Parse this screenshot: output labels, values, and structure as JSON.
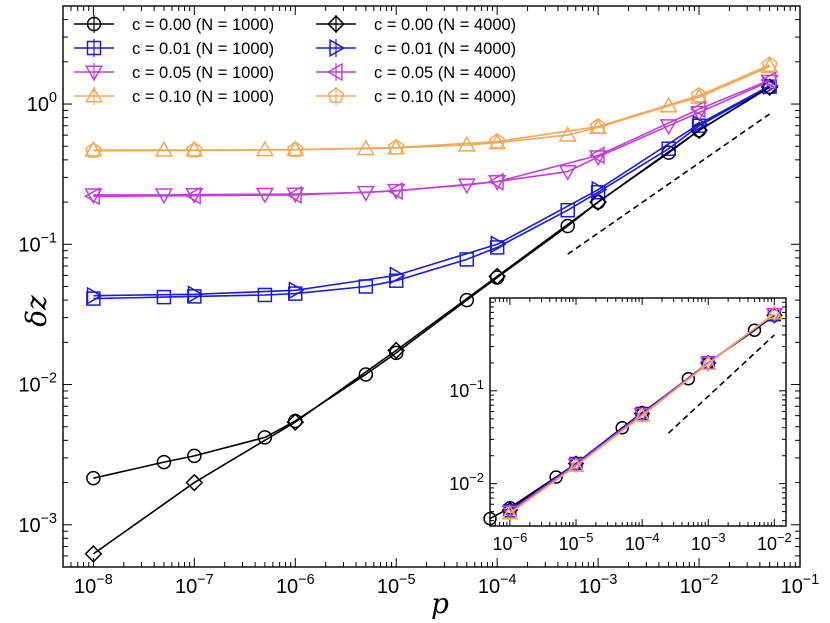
{
  "chart_data": {
    "type": "line",
    "xscale": "log",
    "yscale": "log",
    "xlabel": "p",
    "ylabel": "δz",
    "xlim": [
      5e-09,
      0.1
    ],
    "ylim": [
      0.0005,
      5
    ],
    "x_ticks": [
      {
        "value": 1e-08,
        "base": "10",
        "exp": "−8"
      },
      {
        "value": 1e-07,
        "base": "10",
        "exp": "−7"
      },
      {
        "value": 1e-06,
        "base": "10",
        "exp": "−6"
      },
      {
        "value": 1e-05,
        "base": "10",
        "exp": "−5"
      },
      {
        "value": 0.0001,
        "base": "10",
        "exp": "−4"
      },
      {
        "value": 0.001,
        "base": "10",
        "exp": "−3"
      },
      {
        "value": 0.01,
        "base": "10",
        "exp": "−2"
      },
      {
        "value": 0.1,
        "base": "10",
        "exp": "−1"
      }
    ],
    "y_ticks": [
      {
        "value": 0.001,
        "base": "10",
        "exp": "−3"
      },
      {
        "value": 0.01,
        "base": "10",
        "exp": "−2"
      },
      {
        "value": 0.1,
        "base": "10",
        "exp": "−1"
      },
      {
        "value": 1,
        "base": "10",
        "exp": "0"
      }
    ],
    "legend_position": "top-left",
    "series": [
      {
        "name": "c = 0.00 (N = 1000)",
        "color": "#000000",
        "marker": "circle",
        "x": [
          1e-08,
          5e-08,
          1e-07,
          5e-07,
          1e-06,
          5e-06,
          1e-05,
          5e-05,
          0.0001,
          0.0005,
          0.001,
          0.005,
          0.01,
          0.05
        ],
        "y": [
          0.00215,
          0.0028,
          0.0031,
          0.0042,
          0.0055,
          0.0118,
          0.0168,
          0.04,
          0.058,
          0.135,
          0.2,
          0.45,
          0.65,
          1.32
        ]
      },
      {
        "name": "c = 0.01 (N = 1000)",
        "color": "#1a1ae6",
        "marker": "square",
        "x": [
          1e-08,
          5e-08,
          1e-07,
          5e-07,
          1e-06,
          5e-06,
          1e-05,
          5e-05,
          0.0001,
          0.0005,
          0.001,
          0.005,
          0.01,
          0.05
        ],
        "y": [
          0.041,
          0.042,
          0.0425,
          0.0435,
          0.0445,
          0.05,
          0.055,
          0.078,
          0.095,
          0.175,
          0.235,
          0.48,
          0.7,
          1.33
        ]
      },
      {
        "name": "c = 0.05 (N = 1000)",
        "color": "#c23fd9",
        "marker": "triangle-down",
        "x": [
          1e-08,
          5e-08,
          1e-07,
          5e-07,
          1e-06,
          5e-06,
          1e-05,
          5e-05,
          0.0001,
          0.0005,
          0.001,
          0.005,
          0.01,
          0.05
        ],
        "y": [
          0.225,
          0.225,
          0.226,
          0.227,
          0.228,
          0.234,
          0.242,
          0.265,
          0.28,
          0.33,
          0.42,
          0.7,
          0.87,
          1.45
        ]
      },
      {
        "name": "c = 0.10 (N = 1000)",
        "color": "#f5a85a",
        "marker": "triangle-up",
        "x": [
          1e-08,
          5e-08,
          1e-07,
          5e-07,
          1e-06,
          5e-06,
          1e-05,
          5e-05,
          0.0001,
          0.0005,
          0.001,
          0.005,
          0.01,
          0.05
        ],
        "y": [
          0.47,
          0.47,
          0.47,
          0.472,
          0.474,
          0.48,
          0.486,
          0.51,
          0.53,
          0.6,
          0.68,
          0.97,
          1.12,
          1.85
        ]
      },
      {
        "name": "c = 0.00 (N = 4000)",
        "color": "#000000",
        "marker": "diamond",
        "x": [
          1e-08,
          1e-07,
          1e-06,
          1e-05,
          0.0001,
          0.001,
          0.01,
          0.05
        ],
        "y": [
          0.00062,
          0.002,
          0.0054,
          0.0175,
          0.059,
          0.2,
          0.65,
          1.32
        ]
      },
      {
        "name": "c = 0.01 (N = 4000)",
        "color": "#1a1ae6",
        "marker": "triangle-right",
        "x": [
          1e-08,
          1e-07,
          1e-06,
          1e-05,
          0.0001,
          0.001,
          0.01,
          0.05
        ],
        "y": [
          0.043,
          0.044,
          0.047,
          0.06,
          0.1,
          0.245,
          0.72,
          1.35
        ]
      },
      {
        "name": "c = 0.05 (N = 4000)",
        "color": "#c23fd9",
        "marker": "triangle-left",
        "x": [
          1e-08,
          1e-07,
          1e-06,
          1e-05,
          0.0001,
          0.001,
          0.01,
          0.05
        ],
        "y": [
          0.22,
          0.222,
          0.225,
          0.24,
          0.28,
          0.43,
          0.92,
          1.48
        ]
      },
      {
        "name": "c = 0.10 (N = 4000)",
        "color": "#f5a85a",
        "marker": "pentagon",
        "x": [
          1e-08,
          1e-07,
          1e-06,
          1e-05,
          0.0001,
          0.001,
          0.01,
          0.05
        ],
        "y": [
          0.465,
          0.468,
          0.472,
          0.49,
          0.54,
          0.69,
          1.15,
          1.9
        ]
      }
    ],
    "reference_line": {
      "style": "dashed",
      "color": "#000000",
      "x": [
        0.0005,
        0.05
      ],
      "y": [
        0.085,
        0.85
      ]
    },
    "inset": {
      "xscale": "log",
      "yscale": "log",
      "xlim": [
        5e-07,
        0.015
      ],
      "ylim": [
        0.0035,
        1.0
      ],
      "x_ticks": [
        {
          "value": 1e-06,
          "base": "10",
          "exp": "−6"
        },
        {
          "value": 1e-05,
          "base": "10",
          "exp": "−5"
        },
        {
          "value": 0.0001,
          "base": "10",
          "exp": "−4"
        },
        {
          "value": 0.001,
          "base": "10",
          "exp": "−3"
        },
        {
          "value": 0.01,
          "base": "10",
          "exp": "−2"
        }
      ],
      "y_ticks": [
        {
          "value": 0.01,
          "base": "10",
          "exp": "−2"
        },
        {
          "value": 0.1,
          "base": "10",
          "exp": "−1"
        }
      ],
      "series": [
        {
          "name": "c = 0.00 (N = 1000)",
          "color": "#000000",
          "marker": "circle",
          "x": [
            5e-07,
            1e-06,
            5e-06,
            1e-05,
            5e-05,
            0.0001,
            0.0005,
            0.001,
            0.005,
            0.01
          ],
          "y": [
            0.0042,
            0.0055,
            0.0118,
            0.0165,
            0.04,
            0.058,
            0.135,
            0.2,
            0.45,
            0.65
          ]
        },
        {
          "name": "c = 0.00 (N = 4000)",
          "color": "#000000",
          "marker": "diamond",
          "x": [
            1e-06,
            1e-05,
            0.0001,
            0.001,
            0.01
          ],
          "y": [
            0.0052,
            0.0165,
            0.057,
            0.2,
            0.65
          ]
        },
        {
          "name": "c = 0.01",
          "color": "#1a1ae6",
          "marker": "square",
          "x": [
            1e-06,
            1e-05,
            0.0001,
            0.001,
            0.01
          ],
          "y": [
            0.0051,
            0.0165,
            0.057,
            0.2,
            0.66
          ]
        },
        {
          "name": "c = 0.05",
          "color": "#c23fd9",
          "marker": "triangle-down",
          "x": [
            1e-06,
            1e-05,
            0.0001,
            0.001,
            0.01
          ],
          "y": [
            0.005,
            0.016,
            0.056,
            0.2,
            0.67
          ]
        },
        {
          "name": "c = 0.10",
          "color": "#f5a85a",
          "marker": "triangle-up",
          "x": [
            1e-06,
            1e-05,
            0.0001,
            0.001,
            0.01
          ],
          "y": [
            0.0048,
            0.0155,
            0.054,
            0.195,
            0.68
          ]
        }
      ],
      "reference_line": {
        "style": "dashed",
        "color": "#000000",
        "x": [
          0.00025,
          0.01
        ],
        "y": [
          0.035,
          0.4
        ]
      }
    }
  }
}
